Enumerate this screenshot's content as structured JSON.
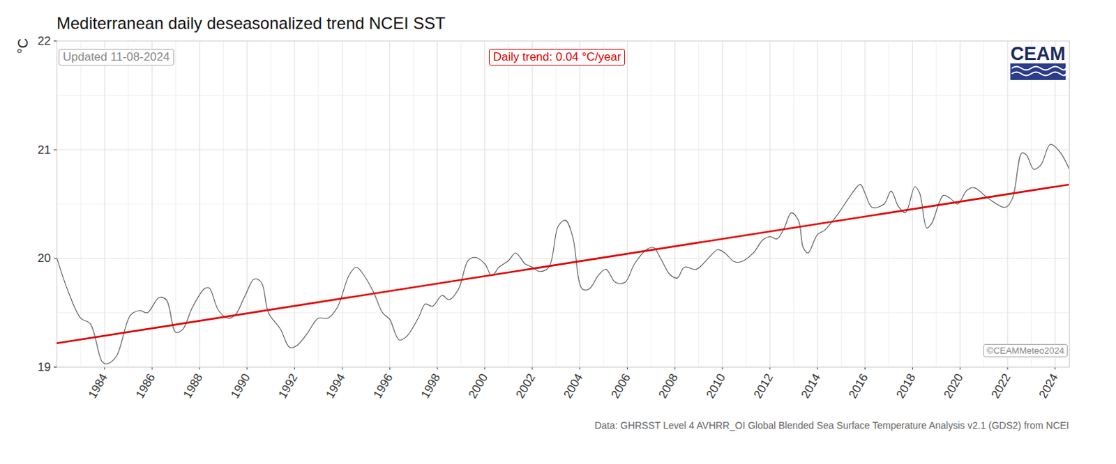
{
  "chart_data": {
    "type": "line",
    "title": "Mediterranean daily deseasonalized trend NCEI SST",
    "y_label": "°C",
    "annotations": [
      "Updated 11-08-2024",
      "Daily trend: 0.04 °C/year",
      "©CEAMMeteo2024",
      "CEAM"
    ],
    "caption": "Data: GHRSST Level 4 AVHRR_OI Global Blended Sea Surface Temperature Analysis v2.1 (GDS2) from NCEI",
    "xlim": [
      1982,
      2024.6
    ],
    "xticks": [
      1984,
      1986,
      1988,
      1990,
      1992,
      1994,
      1996,
      1998,
      2000,
      2002,
      2004,
      2006,
      2008,
      2010,
      2012,
      2014,
      2016,
      2018,
      2020,
      2022,
      2024
    ],
    "ylim": [
      19,
      22
    ],
    "yticks": [
      19,
      20,
      21,
      22
    ],
    "grid": true,
    "series": [
      {
        "color": "#555555",
        "line_style": "solid",
        "x": [
          1982.0,
          1982.5,
          1983.0,
          1983.4,
          1983.9,
          1984.1,
          1984.5,
          1985.1,
          1985.5,
          1985.8,
          1986.3,
          1986.6,
          1987.0,
          1987.3,
          1987.7,
          1988.2,
          1988.4,
          1988.8,
          1989.2,
          1989.5,
          1989.9,
          1990.3,
          1990.6,
          1990.9,
          1991.4,
          1991.8,
          1992.1,
          1992.5,
          1993.0,
          1993.4,
          1993.8,
          1994.3,
          1994.6,
          1994.8,
          1995.3,
          1995.7,
          1996.0,
          1996.4,
          1996.7,
          1997.2,
          1997.5,
          1997.8,
          1998.2,
          1998.5,
          1998.9,
          1999.3,
          1999.6,
          2000.0,
          2000.3,
          2000.6,
          2001.0,
          2001.3,
          2001.7,
          2002.0,
          2002.3,
          2002.7,
          2003.1,
          2003.4,
          2003.7,
          2004.1,
          2004.4,
          2004.8,
          2005.1,
          2005.5,
          2005.9,
          2006.3,
          2006.8,
          2007.1,
          2007.4,
          2007.8,
          2008.1,
          2008.4,
          2008.9,
          2009.4,
          2009.8,
          2010.1,
          2010.5,
          2010.8,
          2011.3,
          2011.7,
          2012.0,
          2012.3,
          2012.6,
          2012.9,
          2013.2,
          2013.4,
          2013.6,
          2014.0,
          2014.3,
          2014.9,
          2015.3,
          2015.8,
          2016.0,
          2016.3,
          2016.8,
          2017.1,
          2017.4,
          2017.7,
          2018.1,
          2018.3,
          2018.6,
          2018.8,
          2019.3,
          2019.6,
          2019.9,
          2020.3,
          2020.6,
          2021.2,
          2021.9,
          2022.2,
          2022.6,
          2022.8,
          2023.1,
          2023.4,
          2023.8,
          2024.2,
          2024.6
        ],
        "values": [
          20.0,
          19.68,
          19.45,
          19.4,
          19.05,
          19.03,
          19.1,
          19.48,
          19.52,
          19.5,
          19.64,
          19.62,
          19.32,
          19.35,
          19.55,
          19.72,
          19.73,
          19.52,
          19.45,
          19.48,
          19.65,
          19.81,
          19.78,
          19.5,
          19.35,
          19.18,
          19.2,
          19.3,
          19.45,
          19.45,
          19.55,
          19.85,
          19.92,
          19.88,
          19.7,
          19.5,
          19.44,
          19.25,
          19.28,
          19.45,
          19.58,
          19.56,
          19.66,
          19.62,
          19.72,
          19.98,
          20.01,
          19.95,
          19.84,
          19.92,
          19.98,
          20.05,
          19.95,
          19.92,
          19.88,
          19.92,
          20.3,
          20.35,
          20.2,
          19.72,
          19.72,
          19.85,
          19.9,
          19.78,
          19.78,
          19.95,
          20.08,
          20.1,
          20.0,
          19.85,
          19.82,
          19.92,
          19.9,
          20.0,
          20.08,
          20.05,
          19.97,
          19.97,
          20.05,
          20.17,
          20.2,
          20.18,
          20.28,
          20.42,
          20.35,
          20.1,
          20.05,
          20.22,
          20.26,
          20.42,
          20.55,
          20.68,
          20.6,
          20.47,
          20.5,
          20.62,
          20.48,
          20.42,
          20.66,
          20.6,
          20.28,
          20.32,
          20.58,
          20.55,
          20.5,
          20.63,
          20.65,
          20.55,
          20.47,
          20.55,
          20.97,
          20.95,
          20.82,
          20.86,
          21.05,
          20.98,
          20.82
        ]
      },
      {
        "color": "#e00000",
        "line_style": "solid",
        "x": [
          1982,
          2024.6
        ],
        "values": [
          19.22,
          20.68
        ]
      }
    ]
  }
}
